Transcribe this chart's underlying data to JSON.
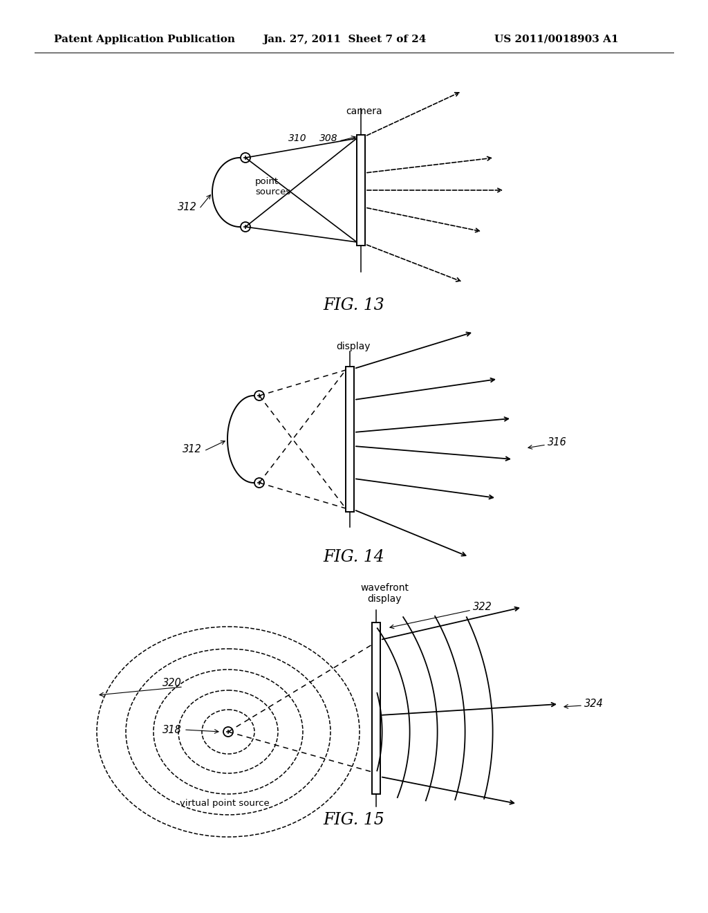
{
  "bg_color": "#ffffff",
  "header_left": "Patent Application Publication",
  "header_mid": "Jan. 27, 2011  Sheet 7 of 24",
  "header_right": "US 2011/0018903 A1",
  "fig13_title": "FIG. 13",
  "fig14_title": "FIG. 14",
  "fig15_title": "FIG. 15"
}
